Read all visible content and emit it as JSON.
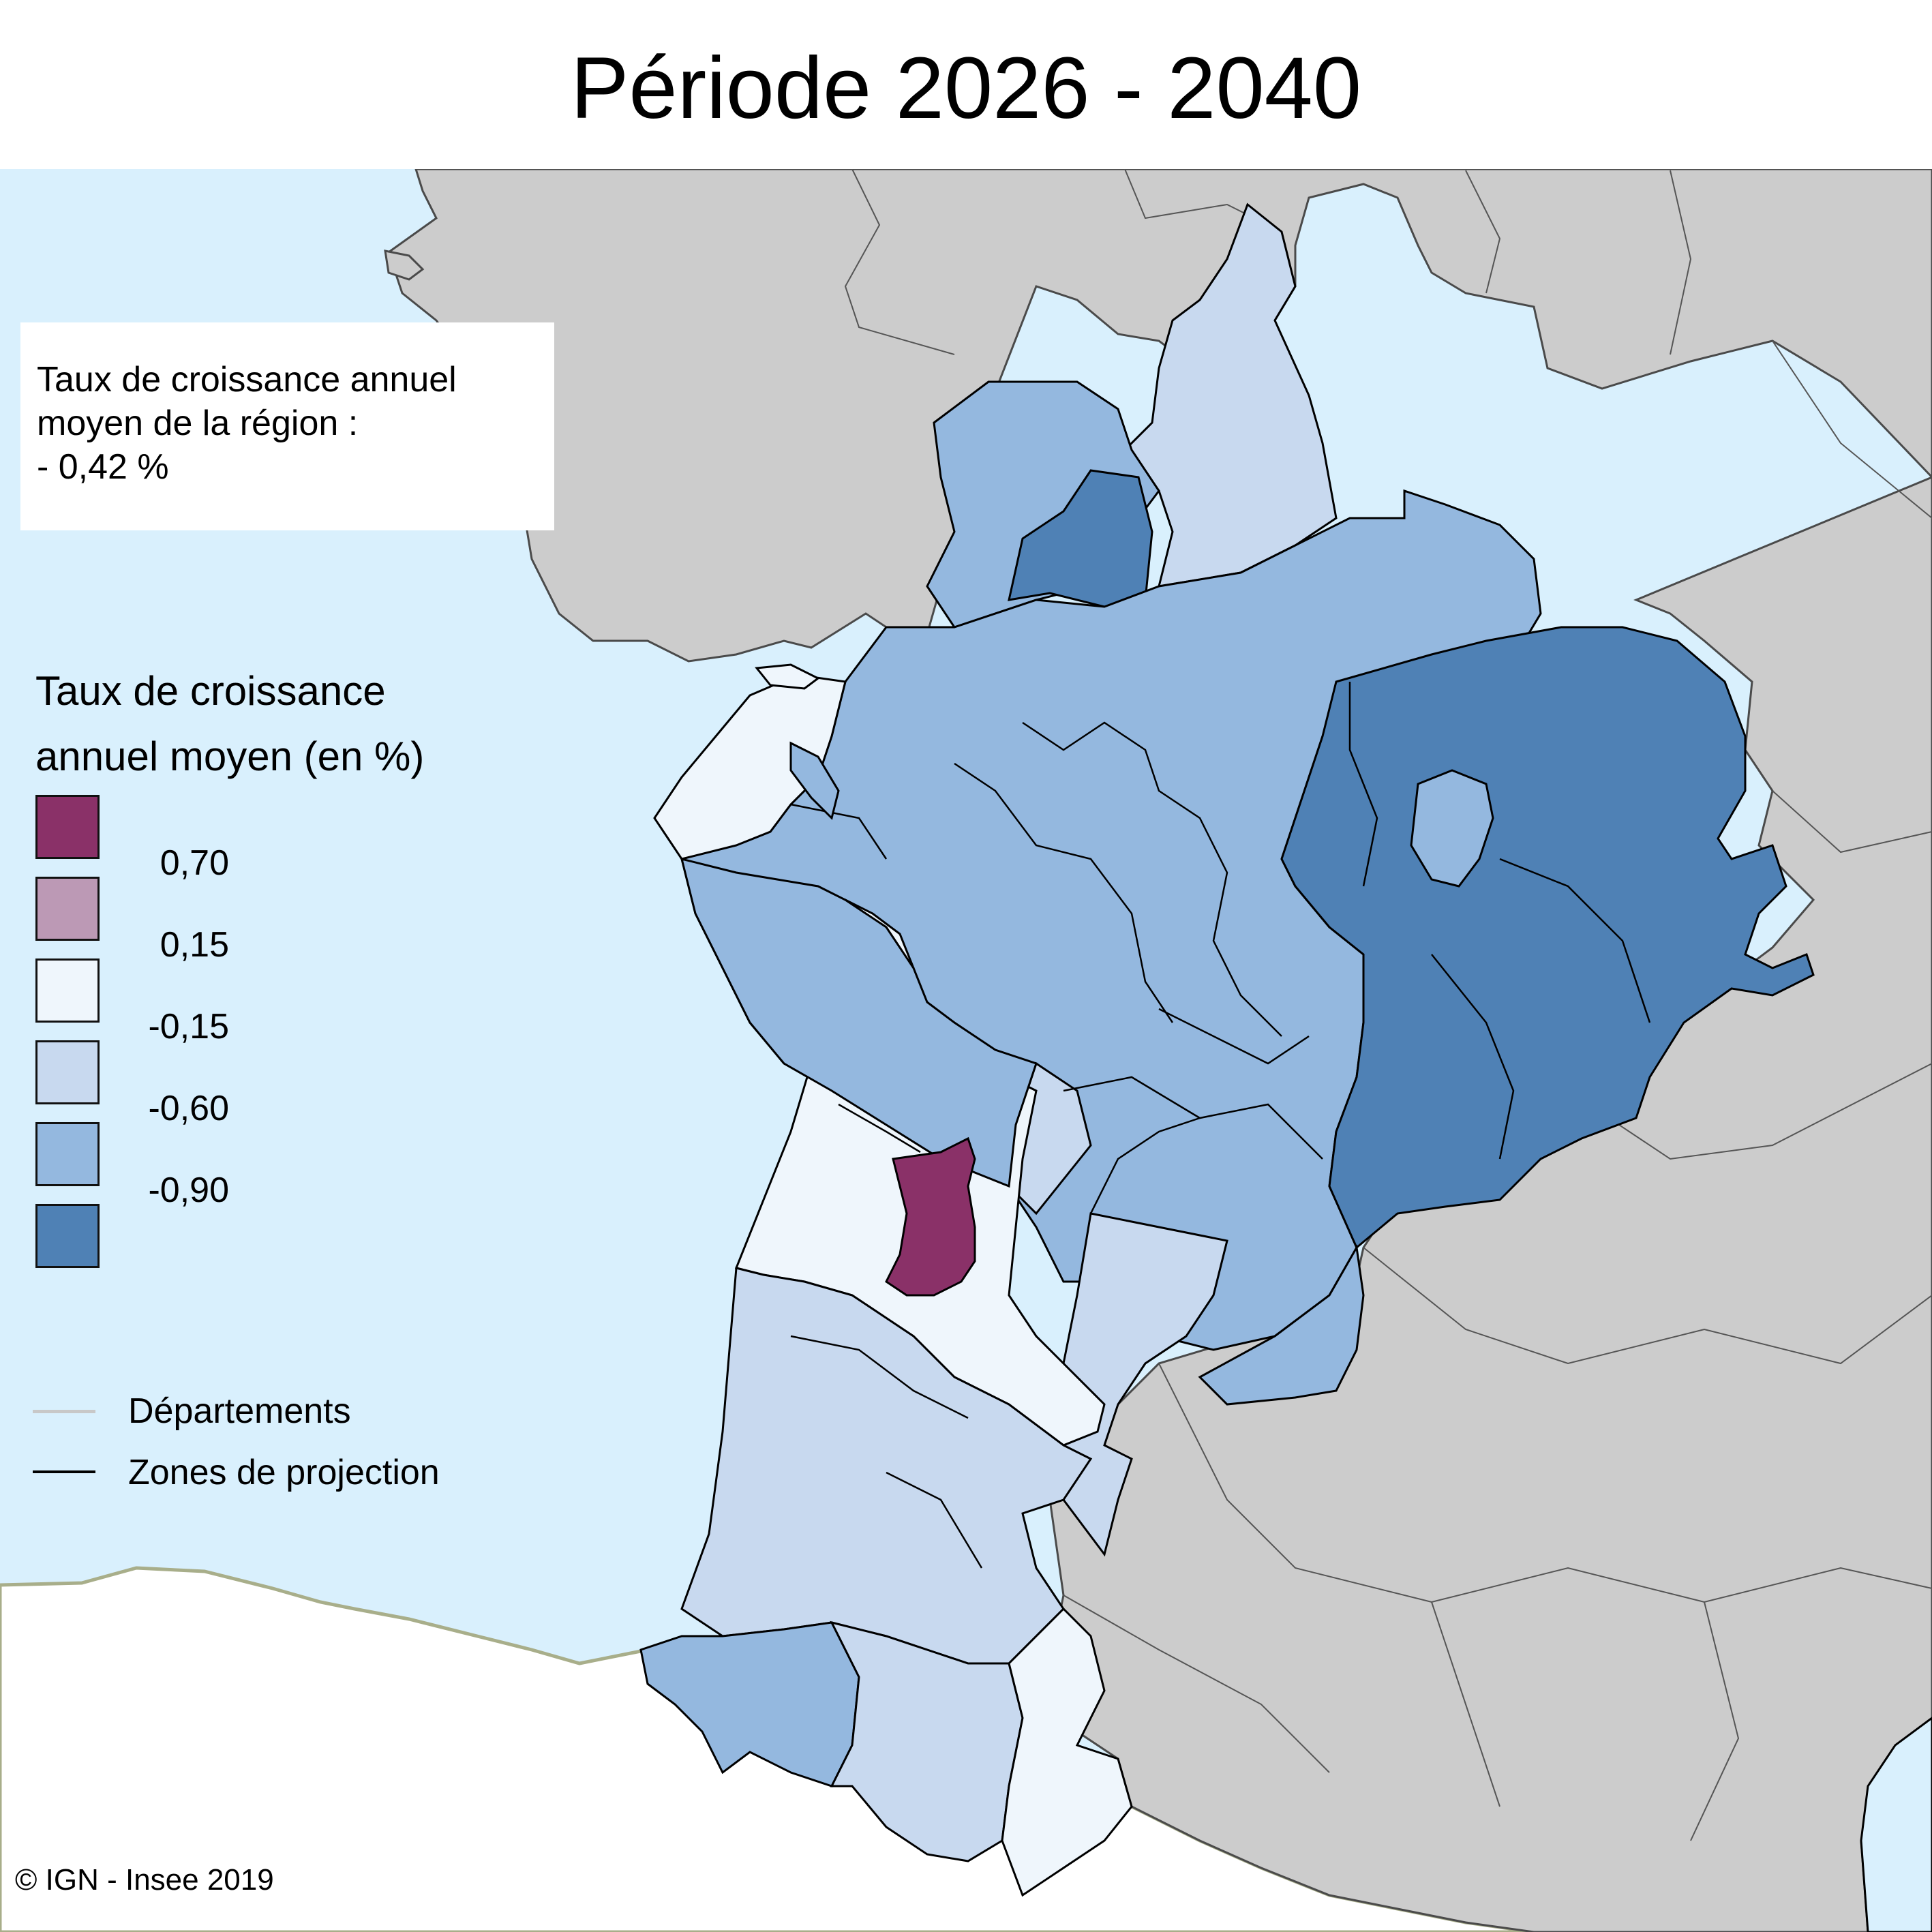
{
  "title": "Période 2026 - 2040",
  "info_box": {
    "line1": "Taux de croissance annuel",
    "line2": "moyen de la région :",
    "line3": "- 0,42 %"
  },
  "legend": {
    "title_line1": "Taux de croissance",
    "title_line2": "annuel moyen (en %)",
    "swatches": [
      {
        "name": "above-0.70",
        "color": "#8a3168"
      },
      {
        "name": "0.15-to-0.70",
        "color": "#bc99b5"
      },
      {
        "name": "-0.15-to-0.15",
        "color": "#eff6fc"
      },
      {
        "name": "-0.60-to-0.15",
        "color": "#c8d9ef"
      },
      {
        "name": "-0.90-to-0.60",
        "color": "#94b8df"
      },
      {
        "name": "below-0.90",
        "color": "#4f81b5"
      }
    ],
    "breaks": [
      "0,70",
      "0,15",
      "-0,15",
      "-0,60",
      "-0,90"
    ],
    "lines": {
      "departements": {
        "label": "Départements",
        "color": "#c8c8c8"
      },
      "zones": {
        "label": "Zones de projection",
        "color": "#000000"
      }
    }
  },
  "map_colors": {
    "sea": "#d9f0fd",
    "land_outside": "#cccccc",
    "spain": "#ffffff",
    "coast_spain": "#a8ae8a"
  },
  "credit": "© IGN - Insee 2019"
}
